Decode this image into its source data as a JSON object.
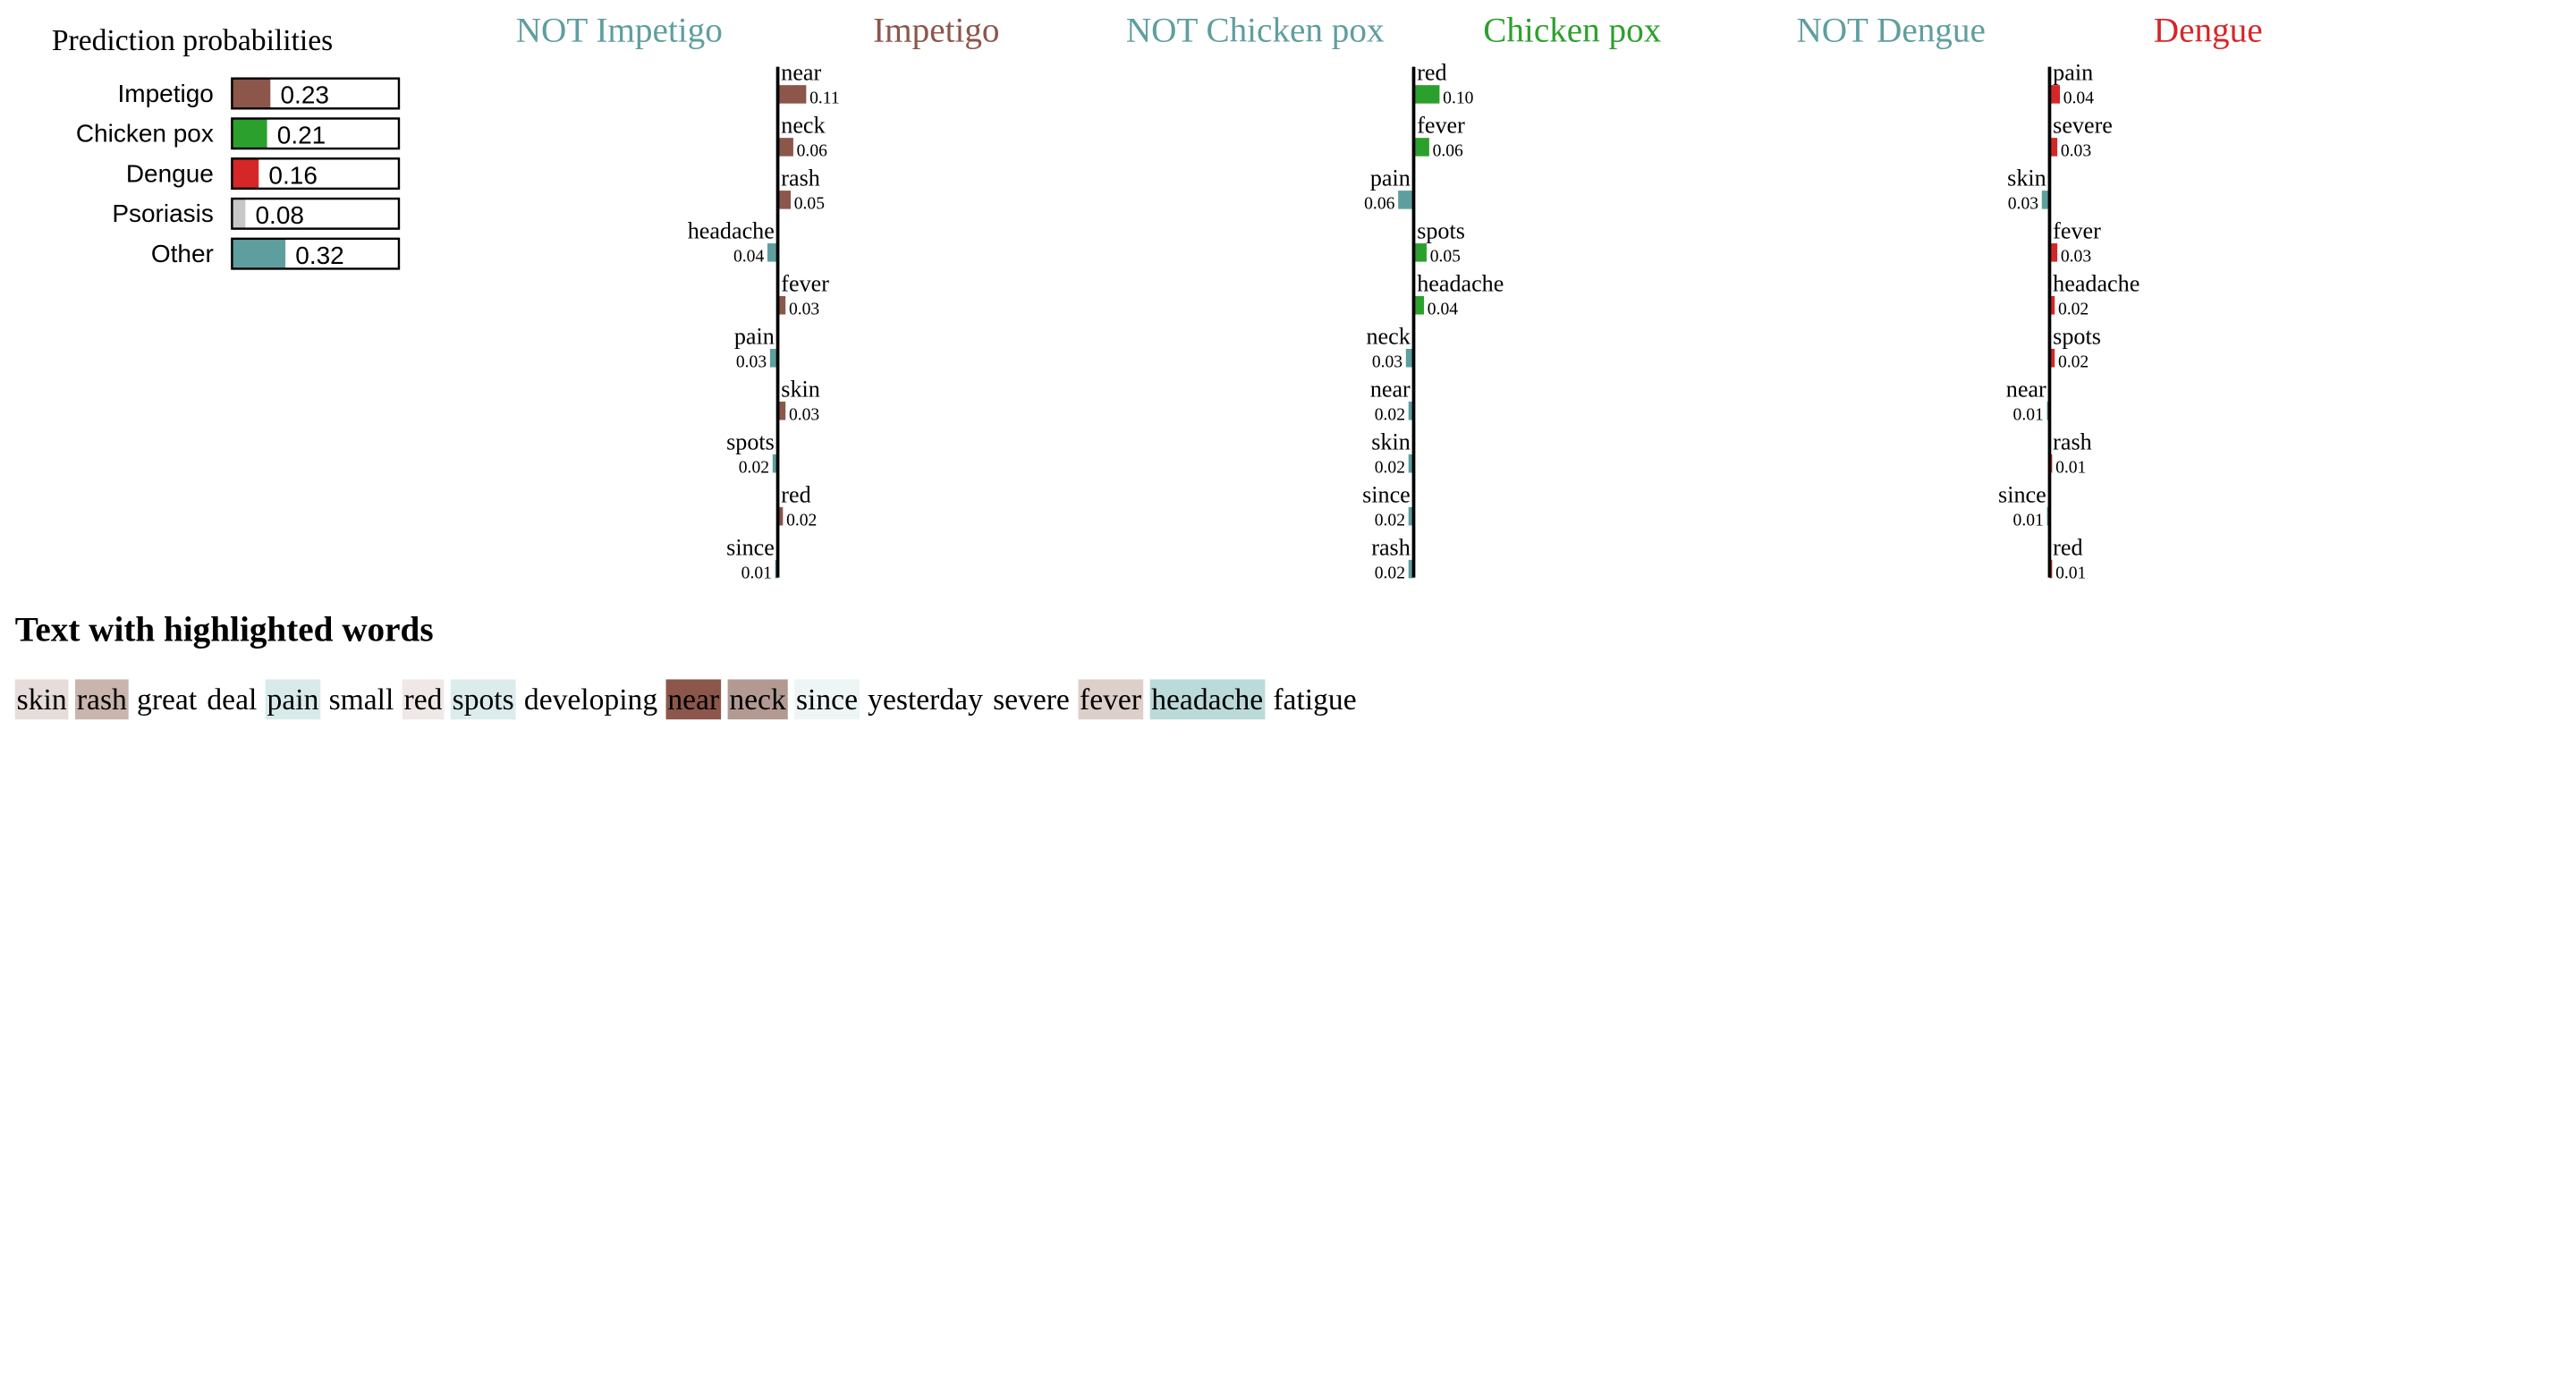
{
  "proba_title": "Prediction probabilities",
  "text_title": "Text with highlighted words",
  "chart_data": [
    {
      "type": "bar",
      "title": "Prediction probabilities",
      "categories": [
        "Impetigo",
        "Chicken pox",
        "Dengue",
        "Psoriasis",
        "Other"
      ],
      "values": [
        0.23,
        0.21,
        0.16,
        0.08,
        0.32
      ],
      "colors": [
        "#8c564b",
        "#2ca02c",
        "#d62728",
        "#c7c7c7",
        "#5f9e9f"
      ],
      "xlim": [
        0,
        1
      ]
    },
    {
      "type": "bar",
      "class_name": "Impetigo",
      "labels": [
        "NOT Impetigo",
        "Impetigo"
      ],
      "label_colors": [
        "#5f9e9f",
        "#8c564b"
      ],
      "positive_color": "#8c564b",
      "negative_color": "#5f9e9f",
      "words": [
        {
          "word": "near",
          "weight": 0.11
        },
        {
          "word": "neck",
          "weight": 0.06
        },
        {
          "word": "rash",
          "weight": 0.05
        },
        {
          "word": "headache",
          "weight": -0.04
        },
        {
          "word": "fever",
          "weight": 0.03
        },
        {
          "word": "pain",
          "weight": -0.03
        },
        {
          "word": "skin",
          "weight": 0.03
        },
        {
          "word": "spots",
          "weight": -0.02
        },
        {
          "word": "red",
          "weight": 0.02
        },
        {
          "word": "since",
          "weight": -0.01
        }
      ]
    },
    {
      "type": "bar",
      "class_name": "Chicken pox",
      "labels": [
        "NOT Chicken pox",
        "Chicken pox"
      ],
      "label_colors": [
        "#5f9e9f",
        "#2ca02c"
      ],
      "positive_color": "#2ca02c",
      "negative_color": "#5f9e9f",
      "words": [
        {
          "word": "red",
          "weight": 0.1
        },
        {
          "word": "fever",
          "weight": 0.06
        },
        {
          "word": "pain",
          "weight": -0.06
        },
        {
          "word": "spots",
          "weight": 0.05
        },
        {
          "word": "headache",
          "weight": 0.04
        },
        {
          "word": "neck",
          "weight": -0.03
        },
        {
          "word": "near",
          "weight": -0.02
        },
        {
          "word": "skin",
          "weight": -0.02
        },
        {
          "word": "since",
          "weight": -0.02
        },
        {
          "word": "rash",
          "weight": -0.02
        }
      ]
    },
    {
      "type": "bar",
      "class_name": "Dengue",
      "labels": [
        "NOT Dengue",
        "Dengue"
      ],
      "label_colors": [
        "#5f9e9f",
        "#d62728"
      ],
      "positive_color": "#d62728",
      "negative_color": "#5f9e9f",
      "words": [
        {
          "word": "pain",
          "weight": 0.04
        },
        {
          "word": "severe",
          "weight": 0.03
        },
        {
          "word": "skin",
          "weight": -0.03
        },
        {
          "word": "fever",
          "weight": 0.03
        },
        {
          "word": "headache",
          "weight": 0.02
        },
        {
          "word": "spots",
          "weight": 0.02
        },
        {
          "word": "near",
          "weight": -0.01
        },
        {
          "word": "rash",
          "weight": 0.01
        },
        {
          "word": "since",
          "weight": -0.01
        },
        {
          "word": "red",
          "weight": 0.01
        }
      ]
    }
  ],
  "highlighted_text": [
    {
      "word": "skin",
      "bg": "#e6dcd9"
    },
    {
      "word": "rash",
      "bg": "#c9b5ae"
    },
    {
      "word": "great",
      "bg": null
    },
    {
      "word": "deal",
      "bg": null
    },
    {
      "word": "pain",
      "bg": "#d8eaea"
    },
    {
      "word": "small",
      "bg": null
    },
    {
      "word": "red",
      "bg": "#efe8e6"
    },
    {
      "word": "spots",
      "bg": "#dceced"
    },
    {
      "word": "developing",
      "bg": null
    },
    {
      "word": "near",
      "bg": "#8c564b"
    },
    {
      "word": "neck",
      "bg": "#b29a93"
    },
    {
      "word": "since",
      "bg": "#eef5f5"
    },
    {
      "word": "yesterday",
      "bg": null
    },
    {
      "word": "severe",
      "bg": null
    },
    {
      "word": "fever",
      "bg": "#ddcfca"
    },
    {
      "word": "headache",
      "bg": "#bbdada"
    },
    {
      "word": "fatigue",
      "bg": null
    }
  ]
}
